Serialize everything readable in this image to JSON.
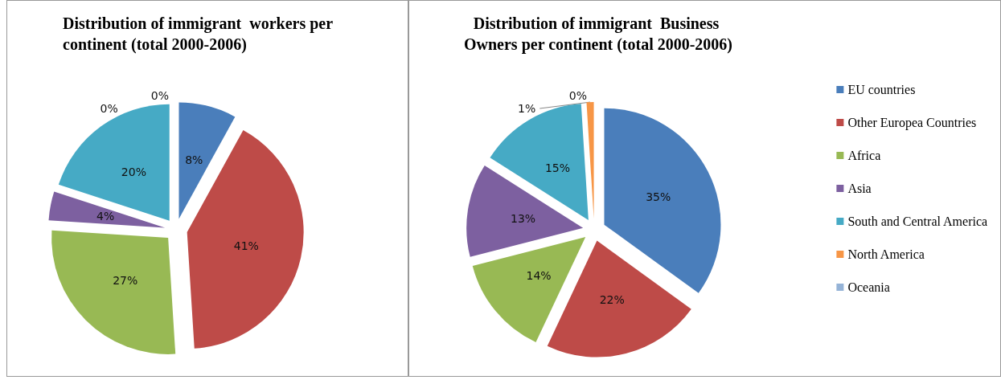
{
  "chart_data": [
    {
      "type": "pie",
      "title": "Distribution of immigrant  workers per continent (total 2000-2006)",
      "categories": [
        null,
        null,
        null,
        null,
        null,
        null,
        null
      ],
      "values": [
        8,
        41,
        27,
        4,
        20,
        0,
        0
      ],
      "value_labels": [
        "8%",
        "41%",
        "27%",
        "4%",
        "20%",
        "0%",
        "0%"
      ],
      "colors": [
        "#4a7ebb",
        "#be4b48",
        "#98b954",
        "#7d60a0",
        "#46aac5",
        "#f79646",
        "#95b3d7"
      ],
      "legend": false
    },
    {
      "type": "pie",
      "title": "Distribution of immigrant  Business Owners per continent (total 2000-2006)",
      "categories": [
        "EU countries",
        "Other Europea Countries",
        "Africa",
        "Asia",
        "South and Central America",
        "North America",
        "Oceania"
      ],
      "values": [
        35,
        22,
        14,
        13,
        15,
        1,
        0
      ],
      "value_labels": [
        "35%",
        "22%",
        "14%",
        "13%",
        "15%",
        "1%",
        "0%"
      ],
      "colors": [
        "#4a7ebb",
        "#be4b48",
        "#98b954",
        "#7d60a0",
        "#46aac5",
        "#f79646",
        "#95b3d7"
      ],
      "legend": "right"
    }
  ]
}
